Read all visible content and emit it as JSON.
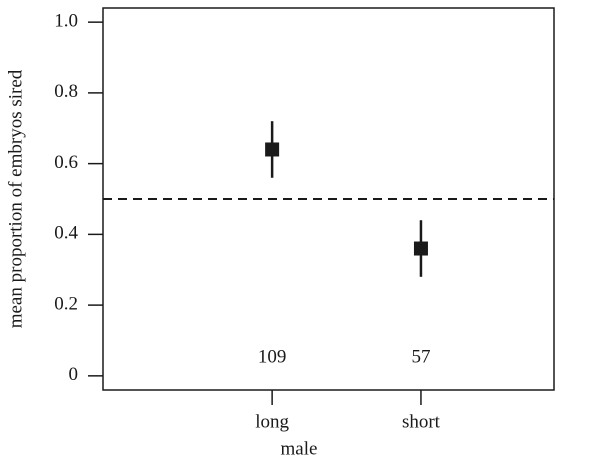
{
  "chart_data": {
    "type": "errorpoint",
    "xlabel": "male",
    "ylabel": "mean proportion of embryos sired",
    "categories": [
      "long",
      "short"
    ],
    "values": [
      0.64,
      0.36
    ],
    "errors": [
      0.08,
      0.08
    ],
    "sample_sizes": [
      109,
      57
    ],
    "reference_line": 0.5,
    "color": "#1a1a1a",
    "ylim": [
      -0.04,
      1.04
    ],
    "yticks": [
      0,
      0.2,
      0.4,
      0.6,
      0.8,
      {
        "value": 1,
        "label": "1.0"
      }
    ]
  }
}
